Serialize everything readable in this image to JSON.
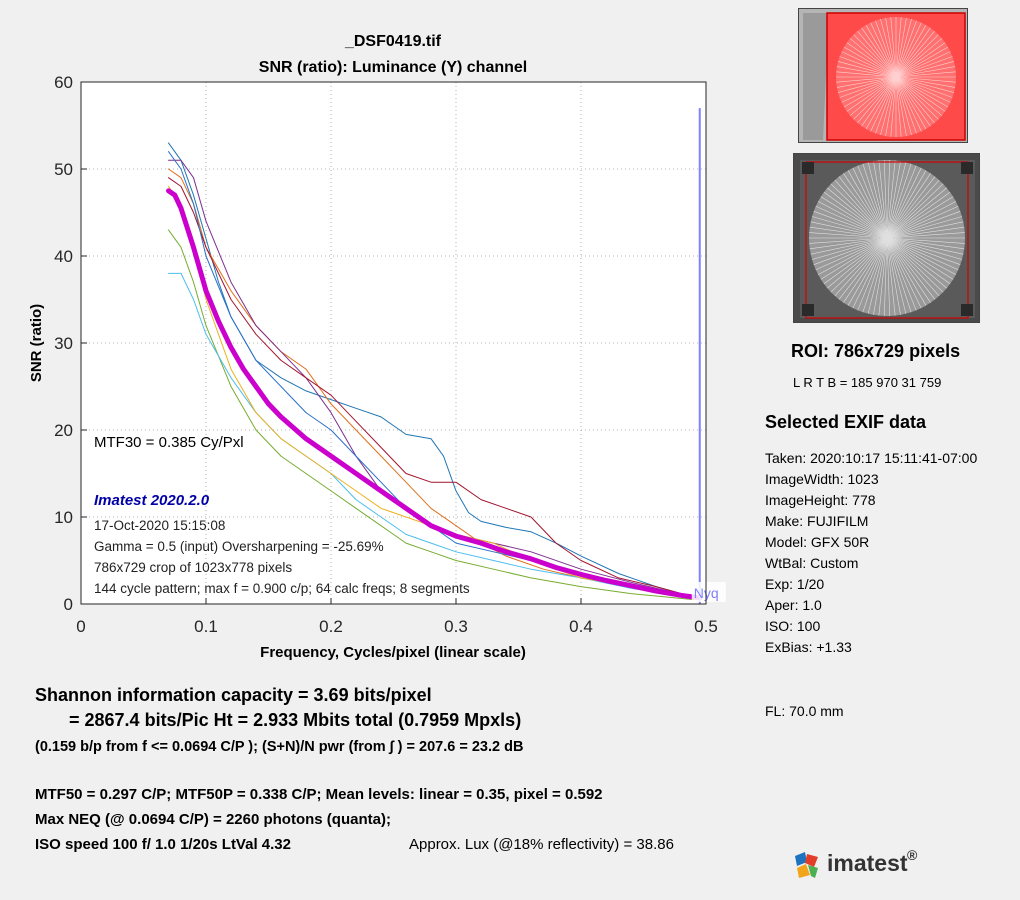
{
  "chart_data": {
    "type": "line",
    "title": "_DSF0419.tif",
    "subtitle": "SNR (ratio):  Luminance (Y) channel",
    "xlabel": "Frequency, Cycles/pixel (linear scale)",
    "ylabel": "SNR (ratio)",
    "xlim": [
      0,
      0.5
    ],
    "ylim": [
      0,
      60
    ],
    "xticks": [
      "0",
      "0.1",
      "0.2",
      "0.3",
      "0.4",
      "0.5"
    ],
    "yticks": [
      "0",
      "10",
      "20",
      "30",
      "40",
      "50",
      "60"
    ],
    "xtick_values": [
      0,
      0.1,
      0.2,
      0.3,
      0.4,
      0.5
    ],
    "ytick_values": [
      0,
      10,
      20,
      30,
      40,
      50,
      60
    ],
    "grid": true,
    "nyquist_x": 0.495,
    "nyquist_label": "Nyq",
    "nyquist_color": "#8080ff",
    "series": [
      {
        "color": "#1f77b4",
        "x": [
          0.07,
          0.08,
          0.09,
          0.1,
          0.11,
          0.12,
          0.14,
          0.16,
          0.18,
          0.2,
          0.22,
          0.24,
          0.26,
          0.28,
          0.29,
          0.3,
          0.31,
          0.32,
          0.34,
          0.36,
          0.38,
          0.4,
          0.43,
          0.46,
          0.49
        ],
        "y": [
          53,
          51,
          47,
          42,
          37,
          33,
          28,
          26,
          24.5,
          23.5,
          22.5,
          21.5,
          19.5,
          19,
          17,
          13,
          10.5,
          9.5,
          8.8,
          8.3,
          7,
          5.5,
          3.5,
          2,
          0.8
        ]
      },
      {
        "color": "#e0701c",
        "x": [
          0.07,
          0.08,
          0.09,
          0.1,
          0.12,
          0.14,
          0.16,
          0.18,
          0.2,
          0.22,
          0.24,
          0.26,
          0.28,
          0.3,
          0.32,
          0.34,
          0.37,
          0.4,
          0.44,
          0.49
        ],
        "y": [
          50,
          49,
          46,
          41,
          36,
          32,
          29,
          27,
          23,
          20,
          17,
          14,
          11,
          9,
          7,
          5.5,
          4,
          3,
          2,
          0.8
        ]
      },
      {
        "color": "#7e2f8e",
        "x": [
          0.07,
          0.08,
          0.09,
          0.1,
          0.12,
          0.14,
          0.16,
          0.18,
          0.2,
          0.22,
          0.24,
          0.26,
          0.28,
          0.3,
          0.33,
          0.36,
          0.4,
          0.44,
          0.49
        ],
        "y": [
          51,
          51,
          49,
          44,
          37,
          32,
          29,
          26,
          22,
          17,
          13,
          11,
          9,
          8,
          7,
          6,
          4,
          2.5,
          0.8
        ]
      },
      {
        "color": "#a2142f",
        "x": [
          0.07,
          0.08,
          0.09,
          0.1,
          0.12,
          0.14,
          0.16,
          0.18,
          0.2,
          0.22,
          0.24,
          0.26,
          0.28,
          0.3,
          0.32,
          0.34,
          0.36,
          0.38,
          0.4,
          0.43,
          0.46,
          0.49
        ],
        "y": [
          49,
          48,
          45,
          41,
          35,
          31,
          28,
          26,
          24,
          21,
          18,
          15,
          14,
          14,
          12,
          11,
          10,
          7,
          5,
          3,
          2,
          0.8
        ]
      },
      {
        "color": "#77ac30",
        "x": [
          0.07,
          0.08,
          0.09,
          0.1,
          0.12,
          0.14,
          0.16,
          0.18,
          0.2,
          0.22,
          0.24,
          0.26,
          0.28,
          0.3,
          0.33,
          0.36,
          0.4,
          0.44,
          0.49
        ],
        "y": [
          43,
          41,
          37,
          32,
          25,
          20,
          17,
          15,
          13,
          11,
          9,
          7,
          6,
          5,
          4,
          3,
          2,
          1.2,
          0.5
        ]
      },
      {
        "color": "#4dbeee",
        "x": [
          0.07,
          0.08,
          0.09,
          0.1,
          0.12,
          0.14,
          0.16,
          0.18,
          0.2,
          0.22,
          0.24,
          0.26,
          0.28,
          0.3,
          0.33,
          0.36,
          0.4,
          0.44,
          0.49
        ],
        "y": [
          38,
          38,
          35,
          31,
          26,
          22,
          19,
          17,
          15,
          12,
          10,
          8,
          7,
          6,
          5,
          4,
          3,
          1.8,
          0.7
        ]
      },
      {
        "color": "#edb120",
        "x": [
          0.07,
          0.08,
          0.09,
          0.1,
          0.12,
          0.14,
          0.16,
          0.18,
          0.2,
          0.22,
          0.24,
          0.26,
          0.28,
          0.3,
          0.33,
          0.36,
          0.4,
          0.44,
          0.49
        ],
        "y": [
          48,
          46,
          41,
          35,
          27,
          22,
          19,
          17,
          15,
          13,
          11,
          10,
          9,
          8,
          7,
          5,
          3,
          2,
          0.8
        ]
      },
      {
        "color": "#2b6fc9",
        "x": [
          0.07,
          0.08,
          0.09,
          0.1,
          0.12,
          0.14,
          0.16,
          0.18,
          0.2,
          0.22,
          0.24,
          0.26,
          0.28,
          0.3,
          0.33,
          0.36,
          0.4,
          0.44,
          0.49
        ],
        "y": [
          52,
          50,
          46,
          40,
          33,
          28,
          25,
          22,
          20,
          17,
          14,
          11,
          9,
          7,
          6,
          5,
          3.5,
          2,
          0.8
        ]
      },
      {
        "color": "#cc00cc",
        "width": 5,
        "x": [
          0.07,
          0.075,
          0.08,
          0.09,
          0.1,
          0.11,
          0.12,
          0.13,
          0.14,
          0.15,
          0.16,
          0.18,
          0.2,
          0.22,
          0.24,
          0.26,
          0.28,
          0.3,
          0.32,
          0.34,
          0.36,
          0.38,
          0.4,
          0.42,
          0.44,
          0.46,
          0.48,
          0.495
        ],
        "y": [
          47.5,
          47,
          45.5,
          41,
          36,
          32.5,
          29.5,
          27,
          25,
          23,
          21.5,
          19,
          17,
          15,
          13,
          11,
          9,
          7.8,
          7,
          6,
          5.2,
          4.2,
          3.4,
          2.7,
          2.1,
          1.5,
          1.0,
          0.7
        ]
      }
    ],
    "annotations": {
      "mtf30": "MTF30 = 0.385 Cy/Pxl",
      "version": "Imatest 2020.2.0",
      "date": "17-Oct-2020 15:15:08",
      "gamma": "Gamma = 0.5 (input)  Oversharpening = -25.69%",
      "crop": "786x729 crop of 1023x778 pixels",
      "pattern": "144 cycle pattern; max f = 0.900 c/p;  64 calc freqs;  8 segments"
    }
  },
  "roi": {
    "title": "ROI:  786x729 pixels",
    "lrtb": "L R  T B = 185 970  31 759"
  },
  "exif": {
    "title": "Selected EXIF data",
    "lines": [
      "Taken: 2020:10:17 15:11:41-07:00",
      "ImageWidth:  1023",
      "ImageHeight:  778",
      "Make:  FUJIFILM",
      "Model:  GFX 50R",
      "WtBal:  Custom",
      "Exp:   1/20",
      "Aper:  1.0",
      "ISO:   100",
      "ExBias:  +1.33"
    ],
    "fl": "FL:   70.0 mm"
  },
  "summary": {
    "line1": "Shannon information capacity  =  3.69 bits/pixel",
    "line2": "=  2867.4 bits/Pic Ht =  2.933 Mbits total (0.7959 Mpxls)",
    "line3": "(0.159 b/p from f <= 0.0694 C/P );   (S+N)/N pwr (from ∫ ) = 207.6 = 23.2 dB",
    "line4": "MTF50 = 0.297 C/P;  MTF50P = 0.338 C/P;    Mean levels:  linear = 0.35,  pixel = 0.592",
    "line5": "Max NEQ (@ 0.0694 C/P) = 2260 photons (quanta);",
    "line6a": "ISO speed  100   f/ 1.0    1/20s    LtVal 4.32",
    "line6b": "Approx. Lux (@18% reflectivity) = 38.86"
  },
  "logo": {
    "text": "imatest",
    "mark": "®"
  }
}
